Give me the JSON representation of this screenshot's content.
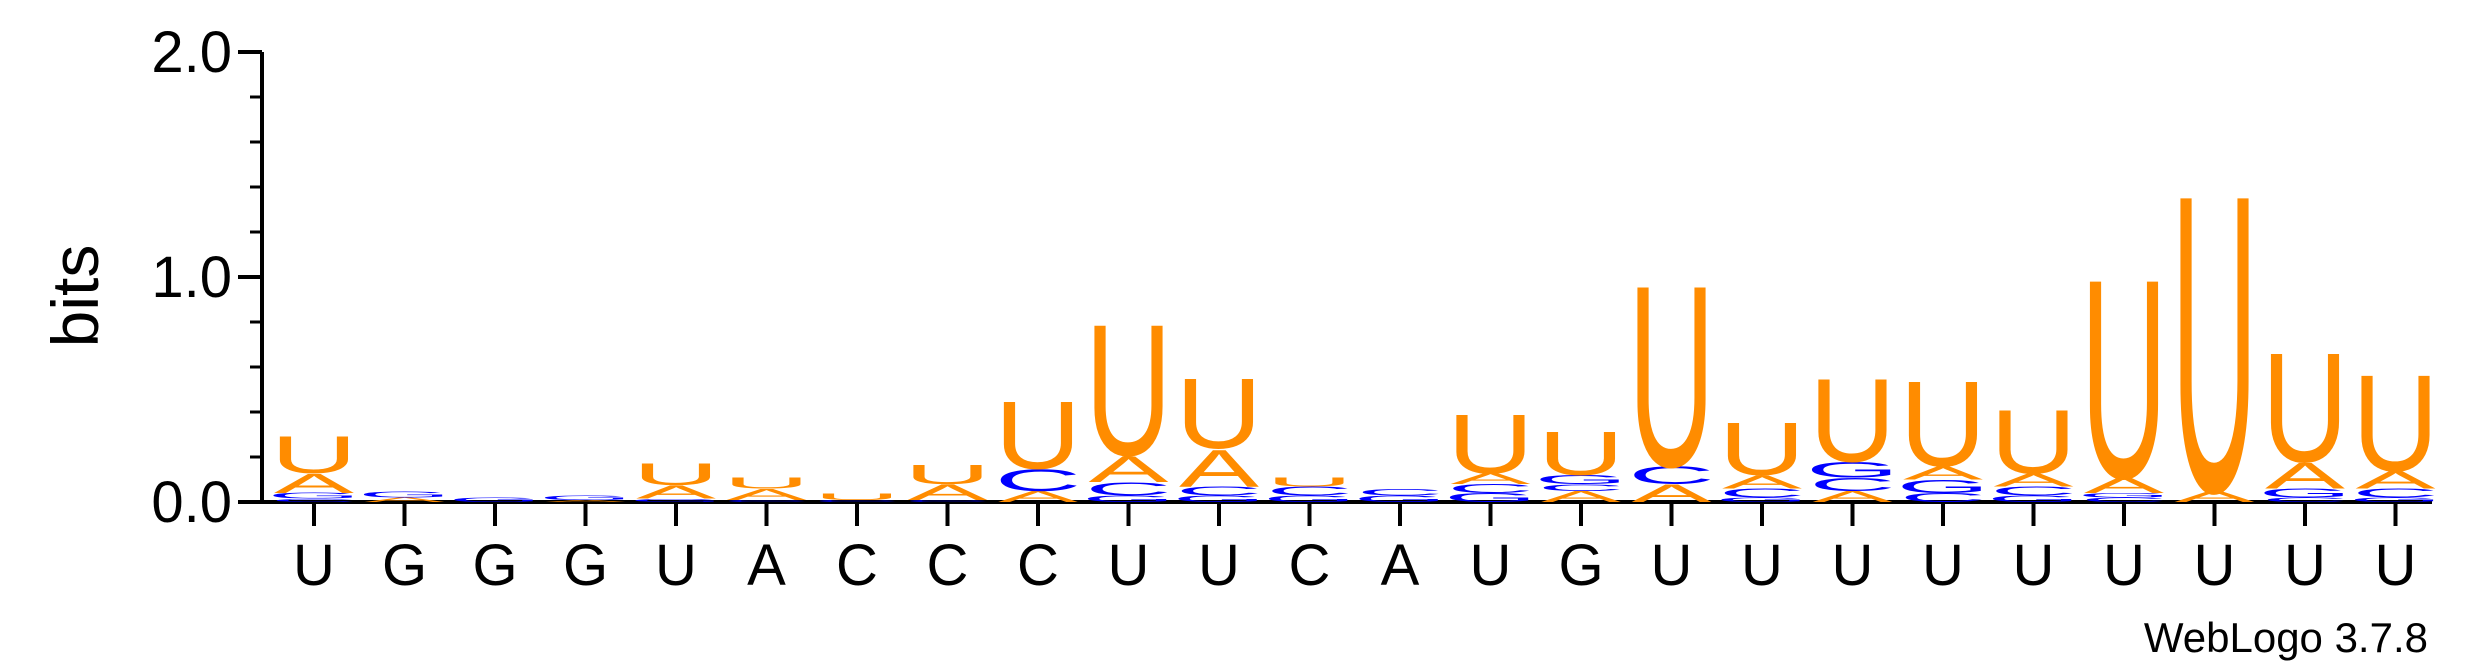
{
  "chart_data": {
    "type": "sequence-logo",
    "ylabel": "bits",
    "ylim": [
      0,
      2.0
    ],
    "yticks": [
      "0.0",
      "1.0",
      "2.0"
    ],
    "footer": "WebLogo 3.7.8",
    "colors": {
      "U": "#ff8c00",
      "A": "#ff8c00",
      "C": "#0000ff",
      "G": "#0000ff"
    },
    "positions": [
      {
        "label": "U",
        "stack": [
          {
            "letter": "C",
            "bits": 0.015
          },
          {
            "letter": "G",
            "bits": 0.025
          },
          {
            "letter": "A",
            "bits": 0.09
          },
          {
            "letter": "U",
            "bits": 0.17
          }
        ]
      },
      {
        "label": "G",
        "stack": [
          {
            "letter": "A",
            "bits": 0.02
          },
          {
            "letter": "G",
            "bits": 0.025
          }
        ]
      },
      {
        "label": "G",
        "stack": [
          {
            "letter": "G",
            "bits": 0.02
          }
        ]
      },
      {
        "label": "G",
        "stack": [
          {
            "letter": "A",
            "bits": 0.01
          },
          {
            "letter": "G",
            "bits": 0.02
          }
        ]
      },
      {
        "label": "U",
        "stack": [
          {
            "letter": "G",
            "bits": 0.015
          },
          {
            "letter": "A",
            "bits": 0.06
          },
          {
            "letter": "U",
            "bits": 0.1
          }
        ]
      },
      {
        "label": "A",
        "stack": [
          {
            "letter": "C",
            "bits": 0.01
          },
          {
            "letter": "A",
            "bits": 0.05
          },
          {
            "letter": "U",
            "bits": 0.05
          }
        ]
      },
      {
        "label": "C",
        "stack": [
          {
            "letter": "C",
            "bits": 0.01
          },
          {
            "letter": "U",
            "bits": 0.03
          }
        ]
      },
      {
        "label": "C",
        "stack": [
          {
            "letter": "C",
            "bits": 0.01
          },
          {
            "letter": "A",
            "bits": 0.07
          },
          {
            "letter": "U",
            "bits": 0.09
          }
        ]
      },
      {
        "label": "C",
        "stack": [
          {
            "letter": "A",
            "bits": 0.05
          },
          {
            "letter": "C",
            "bits": 0.1
          },
          {
            "letter": "U",
            "bits": 0.31
          }
        ]
      },
      {
        "label": "U",
        "stack": [
          {
            "letter": "G",
            "bits": 0.03
          },
          {
            "letter": "C",
            "bits": 0.06
          },
          {
            "letter": "A",
            "bits": 0.12
          },
          {
            "letter": "U",
            "bits": 0.6
          }
        ]
      },
      {
        "label": "U",
        "stack": [
          {
            "letter": "G",
            "bits": 0.03
          },
          {
            "letter": "C",
            "bits": 0.04
          },
          {
            "letter": "A",
            "bits": 0.17
          },
          {
            "letter": "U",
            "bits": 0.32
          }
        ]
      },
      {
        "label": "C",
        "stack": [
          {
            "letter": "G",
            "bits": 0.03
          },
          {
            "letter": "C",
            "bits": 0.04
          },
          {
            "letter": "U",
            "bits": 0.04
          }
        ]
      },
      {
        "label": "A",
        "stack": [
          {
            "letter": "G",
            "bits": 0.03
          },
          {
            "letter": "C",
            "bits": 0.03
          }
        ]
      },
      {
        "label": "U",
        "stack": [
          {
            "letter": "G",
            "bits": 0.04
          },
          {
            "letter": "C",
            "bits": 0.04
          },
          {
            "letter": "A",
            "bits": 0.05
          },
          {
            "letter": "U",
            "bits": 0.27
          }
        ]
      },
      {
        "label": "G",
        "stack": [
          {
            "letter": "A",
            "bits": 0.05
          },
          {
            "letter": "C",
            "bits": 0.03
          },
          {
            "letter": "G",
            "bits": 0.04
          },
          {
            "letter": "U",
            "bits": 0.2
          }
        ]
      },
      {
        "label": "U",
        "stack": [
          {
            "letter": "A",
            "bits": 0.08
          },
          {
            "letter": "C",
            "bits": 0.08
          },
          {
            "letter": "U",
            "bits": 0.83
          }
        ]
      },
      {
        "label": "U",
        "stack": [
          {
            "letter": "G",
            "bits": 0.02
          },
          {
            "letter": "C",
            "bits": 0.04
          },
          {
            "letter": "A",
            "bits": 0.06
          },
          {
            "letter": "U",
            "bits": 0.24
          }
        ]
      },
      {
        "label": "U",
        "stack": [
          {
            "letter": "A",
            "bits": 0.05
          },
          {
            "letter": "C",
            "bits": 0.06
          },
          {
            "letter": "G",
            "bits": 0.07
          },
          {
            "letter": "U",
            "bits": 0.38
          }
        ]
      },
      {
        "label": "U",
        "stack": [
          {
            "letter": "C",
            "bits": 0.04
          },
          {
            "letter": "G",
            "bits": 0.06
          },
          {
            "letter": "A",
            "bits": 0.06
          },
          {
            "letter": "U",
            "bits": 0.39
          }
        ]
      },
      {
        "label": "U",
        "stack": [
          {
            "letter": "G",
            "bits": 0.03
          },
          {
            "letter": "C",
            "bits": 0.04
          },
          {
            "letter": "A",
            "bits": 0.06
          },
          {
            "letter": "U",
            "bits": 0.29
          }
        ]
      },
      {
        "label": "U",
        "stack": [
          {
            "letter": "C",
            "bits": 0.02
          },
          {
            "letter": "G",
            "bits": 0.02
          },
          {
            "letter": "A",
            "bits": 0.07
          },
          {
            "letter": "U",
            "bits": 0.91
          }
        ]
      },
      {
        "label": "U",
        "stack": [
          {
            "letter": "A",
            "bits": 0.05
          },
          {
            "letter": "U",
            "bits": 1.36
          }
        ]
      },
      {
        "label": "U",
        "stack": [
          {
            "letter": "C",
            "bits": 0.02
          },
          {
            "letter": "G",
            "bits": 0.04
          },
          {
            "letter": "A",
            "bits": 0.12
          },
          {
            "letter": "U",
            "bits": 0.5
          }
        ]
      },
      {
        "label": "U",
        "stack": [
          {
            "letter": "G",
            "bits": 0.02
          },
          {
            "letter": "C",
            "bits": 0.04
          },
          {
            "letter": "A",
            "bits": 0.08
          },
          {
            "letter": "U",
            "bits": 0.44
          }
        ]
      }
    ]
  }
}
